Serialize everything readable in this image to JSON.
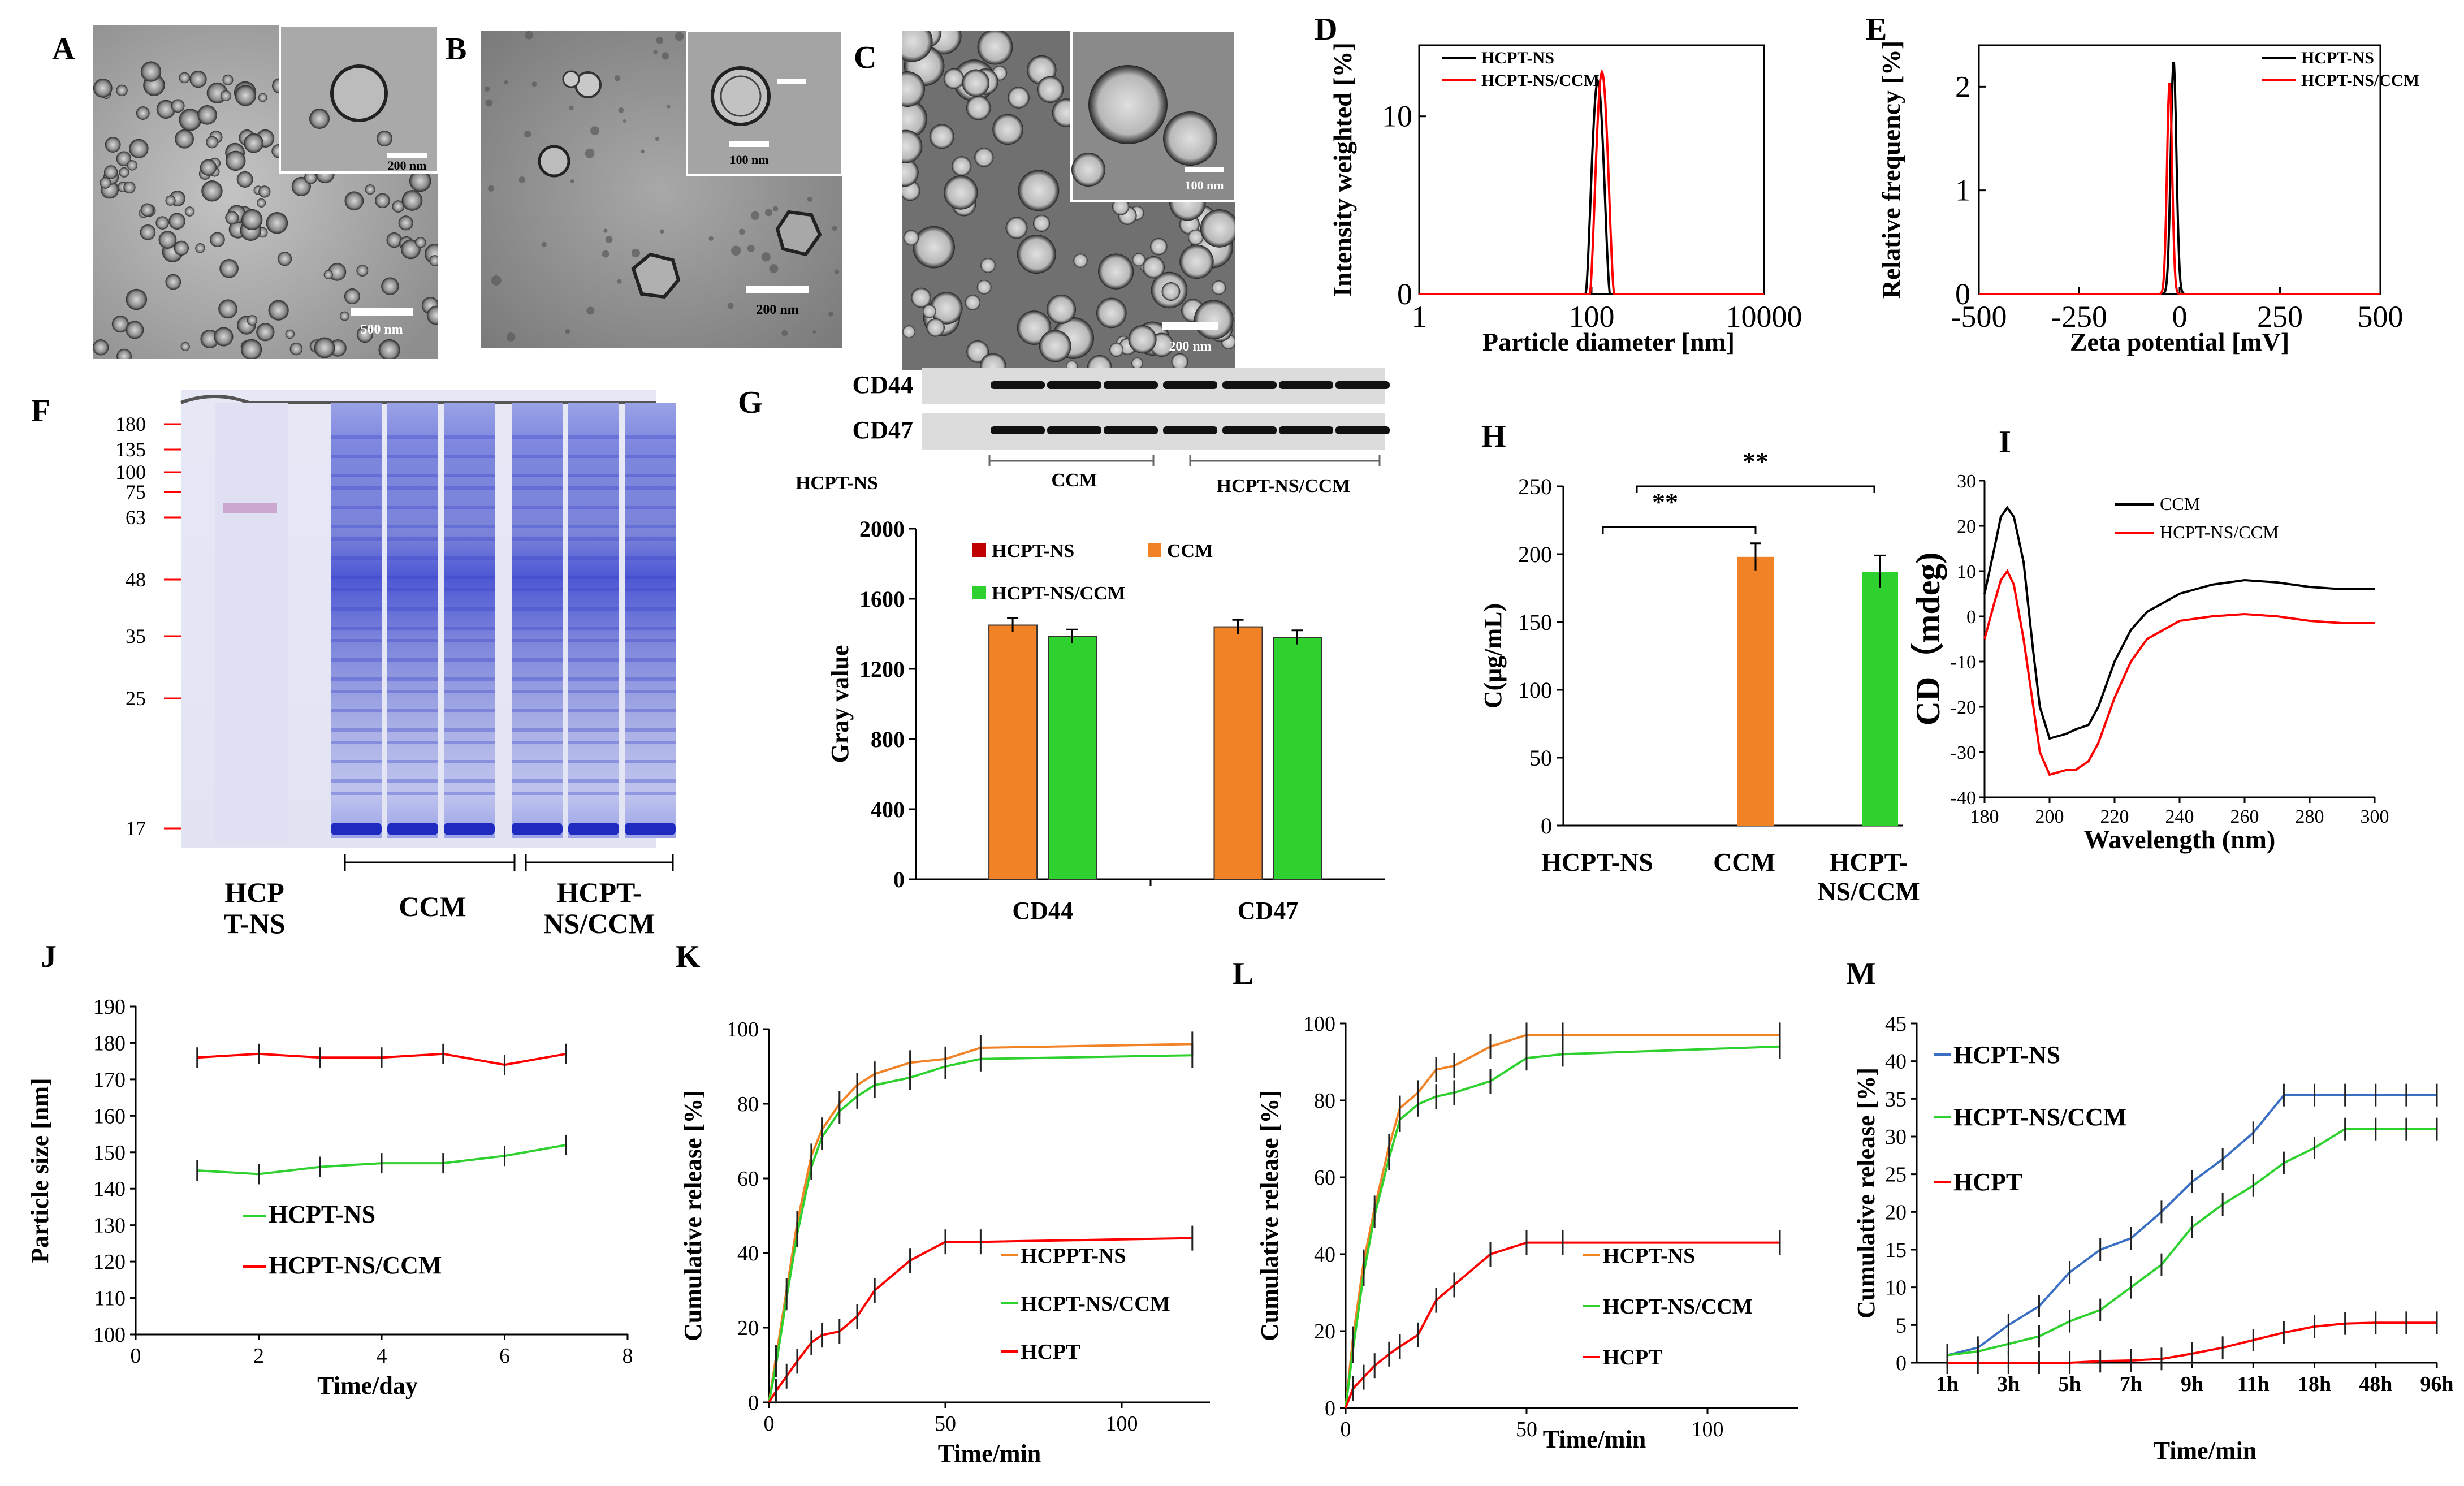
{
  "panel_letters": [
    "A",
    "B",
    "C",
    "D",
    "E",
    "F",
    "G",
    "H",
    "I",
    "J",
    "K",
    "L",
    "M"
  ],
  "colors": {
    "black": "#000000",
    "red": "#ff0000",
    "orange": "#f28226",
    "green": "#2ed12e",
    "blue": "#3a6fc4",
    "dark_red": "#c00000",
    "gel_blue": "#3b46c9"
  },
  "micrographs": {
    "A": {
      "inset_scale": "200 nm",
      "main_scale": "500 nm"
    },
    "B": {
      "inset_scale": "100 nm",
      "main_scale": "200 nm"
    },
    "C": {
      "inset_scale": "100 nm",
      "main_scale": "200 nm"
    }
  },
  "gel": {
    "markers": [
      "180",
      "135",
      "100",
      "75",
      "63",
      "48",
      "35",
      "25",
      "17"
    ],
    "lane_hcpt": "HCP\nT-NS",
    "lane_hcpt_l1": "HCP",
    "lane_hcpt_l2": "T-NS",
    "lane_ccm": "CCM",
    "lane_hcptccm_l1": "HCPT-",
    "lane_hcptccm_l2": "NS/CCM"
  },
  "blot": {
    "rows": [
      "CD44",
      "CD47"
    ],
    "groups": [
      "HCPT-NS",
      "CCM",
      "HCPT-NS/CCM"
    ]
  },
  "chart_data": [
    {
      "id": "D",
      "type": "line",
      "xscale": "log",
      "xlabel": "Particle diameter [nm]",
      "ylabel": "Intensity weighted [%]",
      "xlim": [
        1,
        10000
      ],
      "ylim": [
        0,
        14
      ],
      "xticks": [
        "1",
        "100",
        "10000"
      ],
      "yticks": [
        "0",
        "10"
      ],
      "series": [
        {
          "name": "HCPT-NS"
        },
        {
          "name": "HCPT-NS/CCM"
        }
      ]
    },
    {
      "id": "E",
      "type": "line",
      "xlabel": "Zeta potential [mV]",
      "ylabel": "Relative frequency [%]",
      "xlim": [
        -500,
        500
      ],
      "ylim": [
        0,
        2.4
      ],
      "xticks": [
        "-500",
        "-250",
        "0",
        "250",
        "500"
      ],
      "yticks": [
        "0",
        "1",
        "2"
      ],
      "series": [
        {
          "name": "HCPT-NS"
        },
        {
          "name": "HCPT-NS/CCM"
        }
      ]
    },
    {
      "id": "G",
      "type": "bar",
      "ylabel": "Gray value",
      "categories": [
        "CD44",
        "CD47"
      ],
      "ylim": [
        0,
        2000
      ],
      "yticks": [
        "0",
        "400",
        "800",
        "1200",
        "1600",
        "2000"
      ],
      "series": [
        {
          "name": "HCPT-NS",
          "values": [
            0,
            0
          ]
        },
        {
          "name": "CCM",
          "values": [
            1450,
            1440
          ]
        },
        {
          "name": "HCPT-NS/CCM",
          "values": [
            1385,
            1380
          ]
        }
      ]
    },
    {
      "id": "H",
      "type": "bar",
      "ylabel": "C(μg/mL)",
      "categories": [
        "HCPT-NS",
        "CCM",
        "HCPT-NS/CCM"
      ],
      "cat_l1": [
        "HCPT-NS",
        "CCM",
        "HCPT-"
      ],
      "cat_l2": [
        "",
        "",
        "NS/CCM"
      ],
      "values": [
        0,
        198,
        187
      ],
      "errors": [
        0,
        10,
        12
      ],
      "ylim": [
        0,
        250
      ],
      "yticks": [
        "0",
        "50",
        "100",
        "150",
        "200",
        "250"
      ],
      "annotations": [
        "**",
        "**"
      ]
    },
    {
      "id": "I",
      "type": "line",
      "xlabel": "Wavelength (nm)",
      "ylabel": "CD（mdeg)",
      "xlim": [
        180,
        300
      ],
      "ylim": [
        -40,
        30
      ],
      "xticks": [
        "180",
        "200",
        "220",
        "240",
        "260",
        "280",
        "300"
      ],
      "yticks": [
        "-40",
        "-30",
        "-20",
        "-10",
        "0",
        "10",
        "20",
        "30"
      ],
      "series": [
        {
          "name": "CCM",
          "x": [
            180,
            183,
            185,
            187,
            189,
            192,
            195,
            197,
            200,
            205,
            208,
            212,
            215,
            220,
            225,
            230,
            240,
            250,
            260,
            270,
            280,
            290,
            300
          ],
          "y": [
            5,
            15,
            22,
            24,
            22,
            12,
            -8,
            -20,
            -27,
            -26,
            -25,
            -24,
            -20,
            -10,
            -3,
            1,
            5,
            7,
            8,
            7.5,
            6.5,
            6,
            6
          ]
        },
        {
          "name": "HCPT-NS/CCM",
          "x": [
            180,
            183,
            185,
            187,
            189,
            192,
            195,
            197,
            200,
            205,
            208,
            212,
            215,
            220,
            225,
            230,
            240,
            250,
            260,
            270,
            280,
            290,
            300
          ],
          "y": [
            -5,
            3,
            8,
            10,
            7,
            -5,
            -20,
            -30,
            -35,
            -34,
            -34,
            -32,
            -28,
            -18,
            -10,
            -5,
            -1,
            0,
            0.5,
            0,
            -1,
            -1.5,
            -1.5
          ]
        }
      ]
    },
    {
      "id": "J",
      "type": "line",
      "xlabel": "Time/day",
      "ylabel": "Particle size [nm]",
      "xlim": [
        0,
        8
      ],
      "ylim": [
        100,
        190
      ],
      "xticks": [
        "0",
        "2",
        "4",
        "6",
        "8"
      ],
      "yticks": [
        "100",
        "110",
        "120",
        "130",
        "140",
        "150",
        "160",
        "170",
        "180",
        "190"
      ],
      "series": [
        {
          "name": "HCPT-NS",
          "x": [
            1,
            2,
            3,
            4,
            5,
            6,
            7
          ],
          "y": [
            145,
            144,
            146,
            147,
            147,
            149,
            152
          ]
        },
        {
          "name": "HCPT-NS/CCM",
          "x": [
            1,
            2,
            3,
            4,
            5,
            6,
            7
          ],
          "y": [
            176,
            177,
            176,
            176,
            177,
            174,
            177
          ]
        }
      ]
    },
    {
      "id": "K",
      "type": "line",
      "xlabel": "Time/min",
      "ylabel": "Cumulative release [%]",
      "xlim": [
        0,
        125
      ],
      "ylim": [
        0,
        100
      ],
      "xticks": [
        "0",
        "50",
        "100"
      ],
      "yticks": [
        "0",
        "20",
        "40",
        "60",
        "80",
        "100"
      ],
      "series": [
        {
          "name": "HCPPT-NS",
          "x": [
            0,
            2,
            5,
            8,
            12,
            15,
            20,
            25,
            30,
            40,
            50,
            60,
            120
          ],
          "y": [
            0,
            12,
            30,
            48,
            66,
            73,
            80,
            85,
            88,
            91,
            92,
            95,
            96
          ]
        },
        {
          "name": "HCPT-NS/CCM",
          "x": [
            0,
            2,
            5,
            8,
            12,
            15,
            20,
            25,
            30,
            40,
            50,
            60,
            120
          ],
          "y": [
            0,
            10,
            28,
            45,
            63,
            71,
            78,
            82,
            85,
            87,
            90,
            92,
            93
          ]
        },
        {
          "name": "HCPT",
          "x": [
            0,
            2,
            5,
            8,
            12,
            15,
            20,
            25,
            30,
            40,
            50,
            60,
            120
          ],
          "y": [
            0,
            3,
            7,
            11,
            16,
            18,
            19,
            23,
            30,
            38,
            43,
            43,
            44
          ]
        }
      ]
    },
    {
      "id": "L",
      "type": "line",
      "xlabel": "Time/min",
      "ylabel": "Cumulative release [%]",
      "xlim": [
        0,
        125
      ],
      "ylim": [
        0,
        100
      ],
      "xticks": [
        "0",
        "50",
        "100"
      ],
      "yticks": [
        "0",
        "20",
        "40",
        "60",
        "80",
        "100"
      ],
      "series": [
        {
          "name": "HCPT-NS",
          "x": [
            0,
            2,
            5,
            8,
            12,
            15,
            20,
            25,
            30,
            40,
            50,
            60,
            120
          ],
          "y": [
            0,
            18,
            38,
            52,
            68,
            78,
            82,
            88,
            89,
            94,
            97,
            97,
            97
          ]
        },
        {
          "name": "HCPT-NS/CCM",
          "x": [
            0,
            2,
            5,
            8,
            12,
            15,
            20,
            25,
            30,
            40,
            50,
            60,
            120
          ],
          "y": [
            0,
            15,
            35,
            50,
            65,
            75,
            79,
            81,
            82,
            85,
            91,
            92,
            94
          ]
        },
        {
          "name": "HCPT",
          "x": [
            0,
            2,
            5,
            8,
            12,
            15,
            20,
            25,
            30,
            40,
            50,
            60,
            120
          ],
          "y": [
            0,
            5,
            8,
            11,
            14,
            16,
            19,
            28,
            32,
            40,
            43,
            43,
            43
          ]
        }
      ]
    },
    {
      "id": "M",
      "type": "line",
      "xlabel": "Time/min",
      "ylabel": "Cumulative release [%]",
      "ylim": [
        0,
        45
      ],
      "yticks": [
        "0",
        "5",
        "10",
        "15",
        "20",
        "25",
        "30",
        "35",
        "40",
        "45"
      ],
      "xticks": [
        "1h",
        "3h",
        "5h",
        "7h",
        "9h",
        "11h",
        "18h",
        "48h",
        "96h"
      ],
      "series": [
        {
          "name": "HCPT-NS",
          "x": [
            1,
            2,
            3,
            4,
            5,
            6,
            7,
            8,
            9,
            10,
            11,
            12,
            13,
            14,
            15,
            16,
            17
          ],
          "y": [
            1,
            2,
            5,
            7.5,
            12,
            15,
            16.5,
            20,
            24,
            27,
            30.5,
            35.5,
            35.5,
            35.5,
            35.5,
            35.5,
            35.5
          ]
        },
        {
          "name": "HCPT-NS/CCM",
          "x": [
            1,
            2,
            3,
            4,
            5,
            6,
            7,
            8,
            9,
            10,
            11,
            12,
            13,
            14,
            15,
            16,
            17
          ],
          "y": [
            1,
            1.5,
            2.5,
            3.5,
            5.5,
            7,
            10,
            13,
            18,
            21,
            23.5,
            26.5,
            28.5,
            31,
            31,
            31,
            31
          ]
        },
        {
          "name": "HCPT",
          "x": [
            1,
            2,
            3,
            4,
            5,
            6,
            7,
            8,
            9,
            10,
            11,
            12,
            13,
            14,
            15,
            16,
            17
          ],
          "y": [
            0,
            0,
            0,
            0,
            0,
            0.2,
            0.3,
            0.5,
            1.2,
            2,
            3,
            4,
            4.8,
            5.2,
            5.3,
            5.3,
            5.3
          ]
        }
      ]
    }
  ]
}
